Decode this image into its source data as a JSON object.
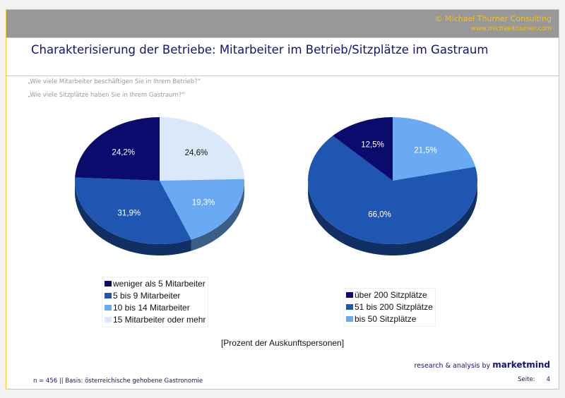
{
  "header": {
    "copyright": "© Michael Thurner Consulting",
    "url": "www.michaelthurner.com"
  },
  "title": "Charakterisierung der Betriebe: Mitarbeiter im Betrieb/Sitzplätze im Gastraum",
  "questions": [
    "„Wie viele Mitarbeiter beschäftigen Sie in Ihrem Betrieb?“",
    "„Wie viele Sitzplätze haben Sie in Ihrem Gastraum?“"
  ],
  "chart_data": [
    {
      "type": "pie",
      "title": "Mitarbeiter im Betrieb",
      "slices": [
        {
          "label": "15 Mitarbeiter oder mehr",
          "value": 24.6,
          "text": "24,6%",
          "color": "#d9e9f9"
        },
        {
          "label": "10 bis 14 Mitarbeiter",
          "value": 19.3,
          "text": "19,3%",
          "color": "#6aaaf2"
        },
        {
          "label": "5 bis 9 Mitarbeiter",
          "value": 31.9,
          "text": "31,9%",
          "color": "#1f56b2"
        },
        {
          "label": "weniger als 5 Mitarbeiter",
          "value": 24.2,
          "text": "24,2%",
          "color": "#0b0b6e"
        }
      ],
      "legend": [
        "weniger als 5 Mitarbeiter",
        "5 bis 9 Mitarbeiter",
        "10 bis 14 Mitarbeiter",
        "15 Mitarbeiter oder mehr"
      ],
      "legend_colors": [
        "#0b0b6e",
        "#1f56b2",
        "#6aaaf2",
        "#d9e9f9"
      ]
    },
    {
      "type": "pie",
      "title": "Sitzplätze im Gastraum",
      "slices": [
        {
          "label": "bis 50 Sitzplätze",
          "value": 21.5,
          "text": "21,5%",
          "color": "#6aaaf2"
        },
        {
          "label": "51 bis 200 Sitzplätze",
          "value": 66.0,
          "text": "66,0%",
          "color": "#1f56b2"
        },
        {
          "label": "über 200 Sitzplätze",
          "value": 12.5,
          "text": "12,5%",
          "color": "#0b0b6e"
        }
      ],
      "legend": [
        "über 200 Sitzplätze",
        "51 bis 200 Sitzplätze",
        "bis 50 Sitzplätze"
      ],
      "legend_colors": [
        "#0b0b6e",
        "#1f56b2",
        "#6aaaf2"
      ]
    }
  ],
  "unit_label": "[Prozent der Auskunftspersonen]",
  "brand": {
    "prefix": "research & analysis by",
    "name": "marketmind"
  },
  "footer": {
    "basis": "n = 456 || Basis: österreichische gehobene Gastronomie",
    "page_label": "Seite:",
    "page_number": "4"
  }
}
